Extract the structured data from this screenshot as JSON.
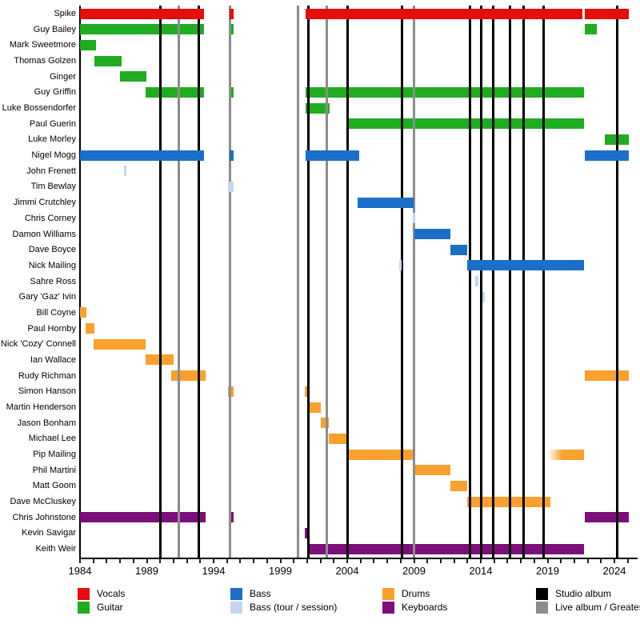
{
  "chart_data": {
    "type": "timeline",
    "description": "Band members timeline (roles over years) with album release lines",
    "x_axis": {
      "min": 1984,
      "max": 2025.7,
      "label_ticks": [
        1984,
        1989,
        1994,
        1999,
        2004,
        2009,
        2014,
        2019,
        2024
      ],
      "minor_tick_step": 1
    },
    "roles": {
      "vocals": {
        "label": "Vocals",
        "color": "#E90C0C"
      },
      "guitar": {
        "label": "Guitar",
        "color": "#1FAD1F"
      },
      "bass": {
        "label": "Bass",
        "color": "#1B6FC8"
      },
      "bass_session": {
        "label": "Bass (tour / session)",
        "color": "#C4D7F2"
      },
      "drums": {
        "label": "Drums",
        "color": "#F9A12C"
      },
      "keyboards": {
        "label": "Keyboards",
        "color": "#7C0E7C"
      }
    },
    "event_lines": {
      "studio_album": {
        "label": "Studio album",
        "color": "#000000",
        "years": [
          1990.0,
          1992.9,
          2001.1,
          2004.0,
          2008.1,
          2013.2,
          2014.0,
          2014.9,
          2016.2,
          2017.2,
          2018.7,
          2024.2
        ]
      },
      "live_album": {
        "label": "Live album / Greatest Hits",
        "color": "#8C8C8C",
        "years": [
          1991.4,
          1995.2,
          2000.3,
          2002.5,
          2009.0
        ]
      }
    },
    "members": [
      {
        "name": "Spike",
        "role": "vocals",
        "segments": [
          [
            1984.0,
            1993.3
          ],
          [
            1995.2,
            1995.5
          ],
          [
            2000.9,
            2021.6
          ],
          [
            2021.8,
            2025.1
          ]
        ]
      },
      {
        "name": "Guy Bailey",
        "role": "guitar",
        "segments": [
          [
            1984.0,
            1993.3
          ],
          [
            1995.2,
            1995.5
          ],
          [
            2021.8,
            2022.7
          ]
        ]
      },
      {
        "name": "Mark Sweetmore",
        "role": "guitar",
        "segments": [
          [
            1984.0,
            1985.2
          ]
        ]
      },
      {
        "name": "Thomas Golzen",
        "role": "guitar",
        "segments": [
          [
            1985.1,
            1987.1
          ]
        ]
      },
      {
        "name": "Ginger",
        "role": "guitar",
        "segments": [
          [
            1987.0,
            1989.0
          ]
        ]
      },
      {
        "name": "Guy Griffin",
        "role": "guitar",
        "segments": [
          [
            1988.9,
            1993.3
          ],
          [
            1995.2,
            1995.5
          ],
          [
            2000.9,
            2021.7
          ]
        ]
      },
      {
        "name": "Luke Bossendorfer",
        "role": "guitar",
        "segments": [
          [
            2000.9,
            2002.7
          ]
        ]
      },
      {
        "name": "Paul Guerin",
        "role": "guitar",
        "segments": [
          [
            2004.0,
            2021.7
          ]
        ]
      },
      {
        "name": "Luke Morley",
        "role": "guitar",
        "segments": [
          [
            2023.3,
            2025.1
          ]
        ]
      },
      {
        "name": "Nigel Mogg",
        "role": "bass",
        "segments": [
          [
            1984.0,
            1993.3
          ],
          [
            1995.2,
            1995.5
          ],
          [
            2000.9,
            2004.9
          ],
          [
            2021.8,
            2025.1
          ]
        ]
      },
      {
        "name": "John Frenett",
        "role": "bass_session",
        "segments": [
          [
            1987.3,
            1987.5
          ]
        ]
      },
      {
        "name": "Tim Bewlay",
        "role": "bass_session",
        "segments": [
          [
            1995.1,
            1995.5
          ]
        ]
      },
      {
        "name": "Jimmi Crutchley",
        "role": "bass",
        "segments": [
          [
            2004.8,
            2009.0
          ]
        ]
      },
      {
        "name": "Chris Corney",
        "role": "bass_session",
        "segments": [
          [
            2008.9,
            2009.1
          ]
        ]
      },
      {
        "name": "Damon Williams",
        "role": "bass",
        "segments": [
          [
            2009.0,
            2011.7
          ]
        ]
      },
      {
        "name": "Dave Boyce",
        "role": "bass",
        "segments": [
          [
            2011.7,
            2013.0
          ]
        ]
      },
      {
        "name": "Nick Mailing",
        "role": "bass",
        "segments": [
          [
            2013.0,
            2021.7
          ]
        ],
        "session_segments": [
          [
            2007.9,
            2008.1
          ]
        ]
      },
      {
        "name": "Sahre Ross",
        "role": "bass_session",
        "segments": [
          [
            2013.6,
            2013.8
          ]
        ]
      },
      {
        "name": "Gary 'Gaz' Ivin",
        "role": "bass_session",
        "segments": [
          [
            2014.1,
            2014.3
          ]
        ]
      },
      {
        "name": "Bill Coyne",
        "role": "drums",
        "segments": [
          [
            1984.0,
            1984.5
          ]
        ]
      },
      {
        "name": "Paul Hornby",
        "role": "drums",
        "segments": [
          [
            1984.4,
            1985.1
          ]
        ]
      },
      {
        "name": "Nick 'Cozy' Connell",
        "role": "drums",
        "segments": [
          [
            1985.0,
            1988.9
          ]
        ]
      },
      {
        "name": "Ian Wallace",
        "role": "drums",
        "segments": [
          [
            1988.9,
            1991.0
          ]
        ]
      },
      {
        "name": "Rudy Richman",
        "role": "drums",
        "segments": [
          [
            1990.8,
            1993.4
          ],
          [
            2021.8,
            2025.1
          ]
        ]
      },
      {
        "name": "Simon Hanson",
        "role": "drums",
        "segments": [
          [
            1995.1,
            1995.5
          ],
          [
            2000.8,
            2001.2
          ]
        ]
      },
      {
        "name": "Martin Henderson",
        "role": "drums",
        "segments": [
          [
            2001.2,
            2002.0
          ]
        ]
      },
      {
        "name": "Jason Bonham",
        "role": "drums",
        "segments": [
          [
            2002.0,
            2002.6
          ]
        ]
      },
      {
        "name": "Michael Lee",
        "role": "drums",
        "segments": [
          [
            2002.6,
            2004.0
          ]
        ]
      },
      {
        "name": "Pip Mailing",
        "role": "drums",
        "segments": [
          [
            2004.0,
            2009.1
          ],
          [
            2019.0,
            2021.7,
            "fade"
          ]
        ]
      },
      {
        "name": "Phil Martini",
        "role": "drums",
        "segments": [
          [
            2009.1,
            2011.7
          ]
        ]
      },
      {
        "name": "Matt Goom",
        "role": "drums",
        "segments": [
          [
            2011.7,
            2013.0
          ]
        ]
      },
      {
        "name": "Dave McCluskey",
        "role": "drums",
        "segments": [
          [
            2013.0,
            2019.2
          ]
        ]
      },
      {
        "name": "Chris Johnstone",
        "role": "keyboards",
        "segments": [
          [
            1984.0,
            1993.4
          ],
          [
            1995.2,
            1995.5
          ],
          [
            2021.8,
            2025.1
          ]
        ]
      },
      {
        "name": "Kevin Savigar",
        "role": "keyboards",
        "segments": [
          [
            2000.8,
            2001.2
          ]
        ]
      },
      {
        "name": "Keith Weir",
        "role": "keyboards",
        "segments": [
          [
            2001.1,
            2021.7
          ]
        ]
      }
    ]
  },
  "legend": {
    "columns": [
      [
        {
          "label": "Vocals",
          "color": "#E90C0C"
        },
        {
          "label": "Guitar",
          "color": "#1FAD1F"
        }
      ],
      [
        {
          "label": "Bass",
          "color": "#1B6FC8"
        },
        {
          "label": "Bass (tour / session)",
          "color": "#C4D7F2"
        }
      ],
      [
        {
          "label": "Drums",
          "color": "#F9A12C"
        },
        {
          "label": "Keyboards",
          "color": "#7C0E7C"
        }
      ],
      [
        {
          "label": "Studio album",
          "color": "#000000"
        },
        {
          "label": "Live album / Greatest Hits",
          "color": "#8C8C8C"
        }
      ]
    ]
  }
}
